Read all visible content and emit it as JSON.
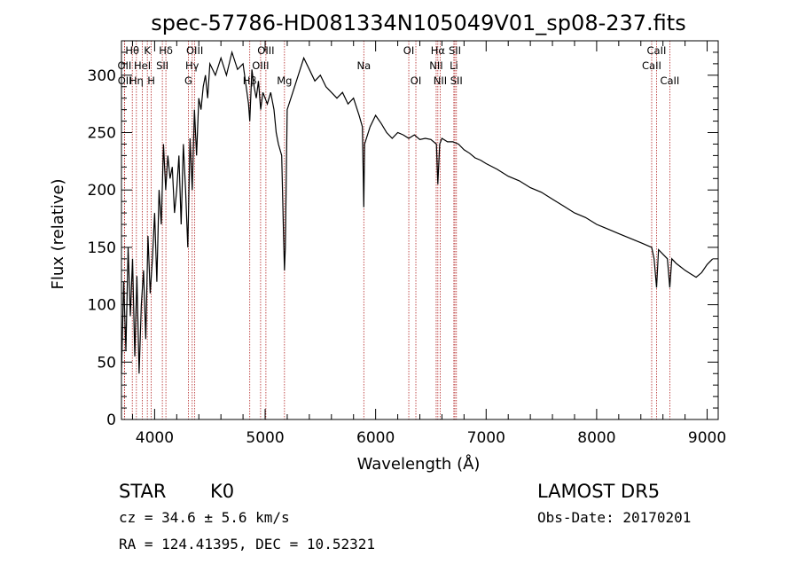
{
  "chart_data": {
    "type": "line",
    "title": "spec-57786-HD081334N105049V01_sp08-237.fits",
    "xlabel": "Wavelength (Å)",
    "ylabel": "Flux (relative)",
    "xlim": [
      3700,
      9100
    ],
    "ylim": [
      0,
      330
    ],
    "xticks": [
      4000,
      5000,
      6000,
      7000,
      8000,
      9000
    ],
    "yticks": [
      0,
      50,
      100,
      150,
      200,
      250,
      300
    ],
    "xtick_labels": [
      "4000",
      "5000",
      "6000",
      "7000",
      "8000",
      "9000"
    ],
    "ytick_labels": [
      "0",
      "50",
      "100",
      "150",
      "200",
      "250",
      "300"
    ],
    "grid": false,
    "series": [
      {
        "x": [
          3700,
          3720,
          3740,
          3760,
          3780,
          3800,
          3820,
          3840,
          3860,
          3880,
          3900,
          3920,
          3940,
          3960,
          3980,
          4000,
          4020,
          4040,
          4060,
          4080,
          4100,
          4120,
          4140,
          4160,
          4180,
          4200,
          4220,
          4240,
          4260,
          4280,
          4300,
          4320,
          4340,
          4360,
          4380,
          4400,
          4420,
          4440,
          4460,
          4480,
          4500,
          4550,
          4600,
          4650,
          4700,
          4750,
          4800,
          4850,
          4861,
          4880,
          4900,
          4920,
          4940,
          4960,
          4980,
          5000,
          5020,
          5050,
          5080,
          5100,
          5120,
          5150,
          5167,
          5175,
          5183,
          5200,
          5250,
          5300,
          5350,
          5400,
          5450,
          5500,
          5550,
          5600,
          5650,
          5700,
          5750,
          5800,
          5850,
          5880,
          5893,
          5900,
          5950,
          6000,
          6050,
          6100,
          6150,
          6200,
          6250,
          6300,
          6350,
          6400,
          6450,
          6500,
          6550,
          6563,
          6580,
          6600,
          6650,
          6700,
          6750,
          6800,
          6850,
          6900,
          6950,
          7000,
          7100,
          7200,
          7300,
          7400,
          7500,
          7600,
          7700,
          7800,
          7900,
          8000,
          8100,
          8200,
          8300,
          8400,
          8498,
          8520,
          8542,
          8560,
          8600,
          8640,
          8662,
          8680,
          8720,
          8760,
          8800,
          8850,
          8900,
          8950,
          9000,
          9050
        ],
        "y": [
          40,
          120,
          60,
          150,
          90,
          140,
          55,
          125,
          40,
          100,
          130,
          70,
          160,
          110,
          140,
          180,
          120,
          200,
          170,
          240,
          200,
          230,
          210,
          220,
          180,
          200,
          230,
          170,
          240,
          200,
          150,
          245,
          200,
          270,
          230,
          280,
          270,
          290,
          300,
          280,
          310,
          300,
          315,
          300,
          320,
          305,
          310,
          275,
          260,
          305,
          290,
          280,
          295,
          270,
          285,
          280,
          275,
          285,
          270,
          250,
          240,
          230,
          160,
          130,
          150,
          270,
          285,
          300,
          315,
          305,
          295,
          300,
          290,
          285,
          280,
          285,
          275,
          280,
          265,
          255,
          185,
          240,
          255,
          265,
          258,
          250,
          245,
          250,
          248,
          245,
          248,
          244,
          245,
          244,
          240,
          205,
          240,
          245,
          242,
          242,
          240,
          235,
          232,
          228,
          226,
          223,
          218,
          212,
          208,
          202,
          198,
          192,
          186,
          180,
          176,
          170,
          166,
          162,
          158,
          154,
          150,
          140,
          115,
          148,
          144,
          140,
          115,
          140,
          136,
          133,
          130,
          127,
          124,
          128,
          135,
          140
        ]
      }
    ],
    "spectral_lines": [
      {
        "label": "Hθ",
        "x": 3798,
        "row": 0
      },
      {
        "label": "OII",
        "x": 3727,
        "row": 1
      },
      {
        "label": "OII",
        "x": 3729,
        "row": 2
      },
      {
        "label": "K",
        "x": 3934,
        "row": 0
      },
      {
        "label": "HeI",
        "x": 3889,
        "row": 1
      },
      {
        "label": "Hη",
        "x": 3835,
        "row": 2
      },
      {
        "label": "H",
        "x": 3969,
        "row": 2
      },
      {
        "label": "Hδ",
        "x": 4102,
        "row": 0
      },
      {
        "label": "SII",
        "x": 4070,
        "row": 1
      },
      {
        "label": "OIII",
        "x": 4363,
        "row": 0
      },
      {
        "label": "Hγ",
        "x": 4340,
        "row": 1
      },
      {
        "label": "G",
        "x": 4305,
        "row": 2
      },
      {
        "label": "OIII",
        "x": 5007,
        "row": 0
      },
      {
        "label": "OIII",
        "x": 4959,
        "row": 1
      },
      {
        "label": "Hβ",
        "x": 4861,
        "row": 2
      },
      {
        "label": "Mg",
        "x": 5175,
        "row": 2
      },
      {
        "label": "Na",
        "x": 5893,
        "row": 1
      },
      {
        "label": "OI",
        "x": 6300,
        "row": 0
      },
      {
        "label": "OI",
        "x": 6364,
        "row": 2
      },
      {
        "label": "Hα",
        "x": 6563,
        "row": 0
      },
      {
        "label": "NII",
        "x": 6548,
        "row": 1
      },
      {
        "label": "NII",
        "x": 6584,
        "row": 2
      },
      {
        "label": "SII",
        "x": 6717,
        "row": 0
      },
      {
        "label": "Li",
        "x": 6708,
        "row": 1
      },
      {
        "label": "SII",
        "x": 6731,
        "row": 2
      },
      {
        "label": "CaII",
        "x": 8542,
        "row": 0
      },
      {
        "label": "CaII",
        "x": 8498,
        "row": 1
      },
      {
        "label": "CaII",
        "x": 8662,
        "row": 2
      }
    ]
  },
  "info": {
    "object_class": "STAR",
    "subclass": "K0",
    "survey": "LAMOST DR5",
    "redshift": "cz = 34.6 ± 5.6 km/s",
    "obs_date": "Obs-Date: 20170201",
    "coords": "RA = 124.41395, DEC =  10.52321"
  },
  "colors": {
    "spectrum": "#000000",
    "line_markers": "#b22222",
    "axes": "#000000",
    "background": "#ffffff"
  }
}
